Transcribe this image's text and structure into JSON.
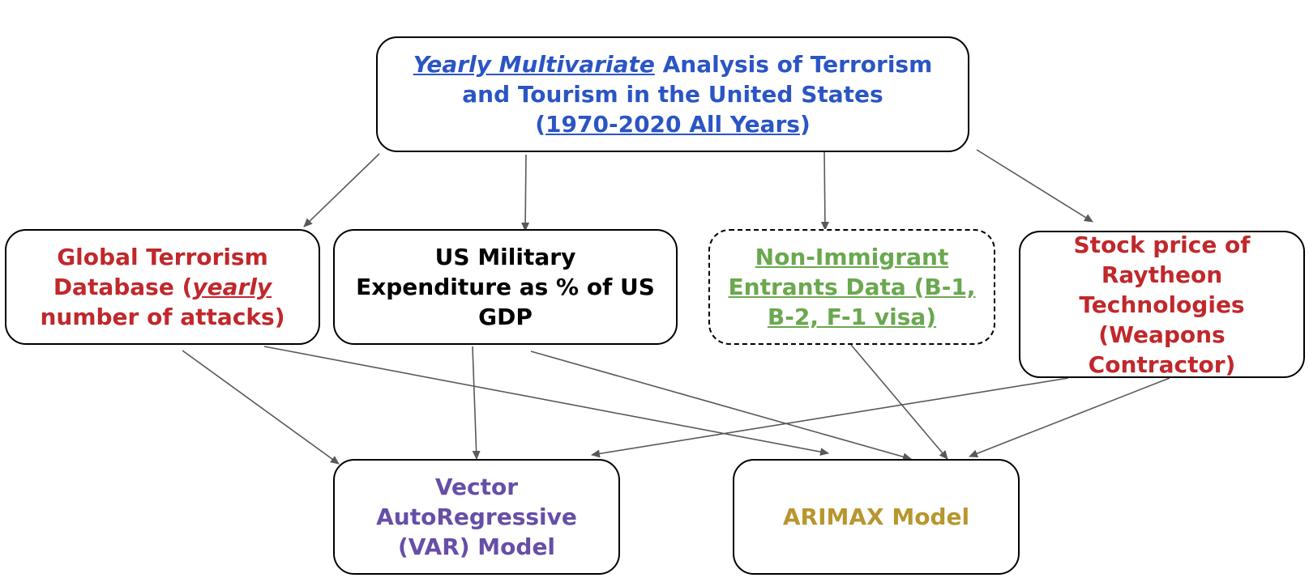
{
  "diagram": {
    "title_node": {
      "part1": "Yearly Multivariate",
      "part2": " Analysis of Terrorism",
      "line2": "and Tourism in the United States",
      "line3_open": "(",
      "line3_link": "1970-2020 All Years",
      "line3_close": ")"
    },
    "gtd_node": {
      "line1": "Global Terrorism",
      "line2_pre": "Database (",
      "line2_em": "yearly",
      "line3": "number of attacks)"
    },
    "military_node": {
      "line1": "US Military",
      "line2": "Expenditure as % of US",
      "line3": "GDP"
    },
    "nie_node": {
      "line1": "Non-Immigrant",
      "line2": "Entrants Data (B-1,",
      "line3": "B-2, F-1 visa)"
    },
    "raytheon_node": {
      "line1": "Stock price of",
      "line2": "Raytheon",
      "line3": "Technologies",
      "line4": "(Weapons",
      "line5": "Contractor)"
    },
    "var_node": {
      "line1": "Vector",
      "line2": "AutoRegressive",
      "line3": "(VAR) Model"
    },
    "arimax_node": {
      "line1": "ARIMAX Model"
    },
    "colors": {
      "title_blue": "#2b55c4",
      "red": "#c0282c",
      "black": "#000000",
      "green": "#6aa84f",
      "purple": "#674ea7",
      "gold": "#b8962e",
      "arrow": "#595959"
    }
  }
}
